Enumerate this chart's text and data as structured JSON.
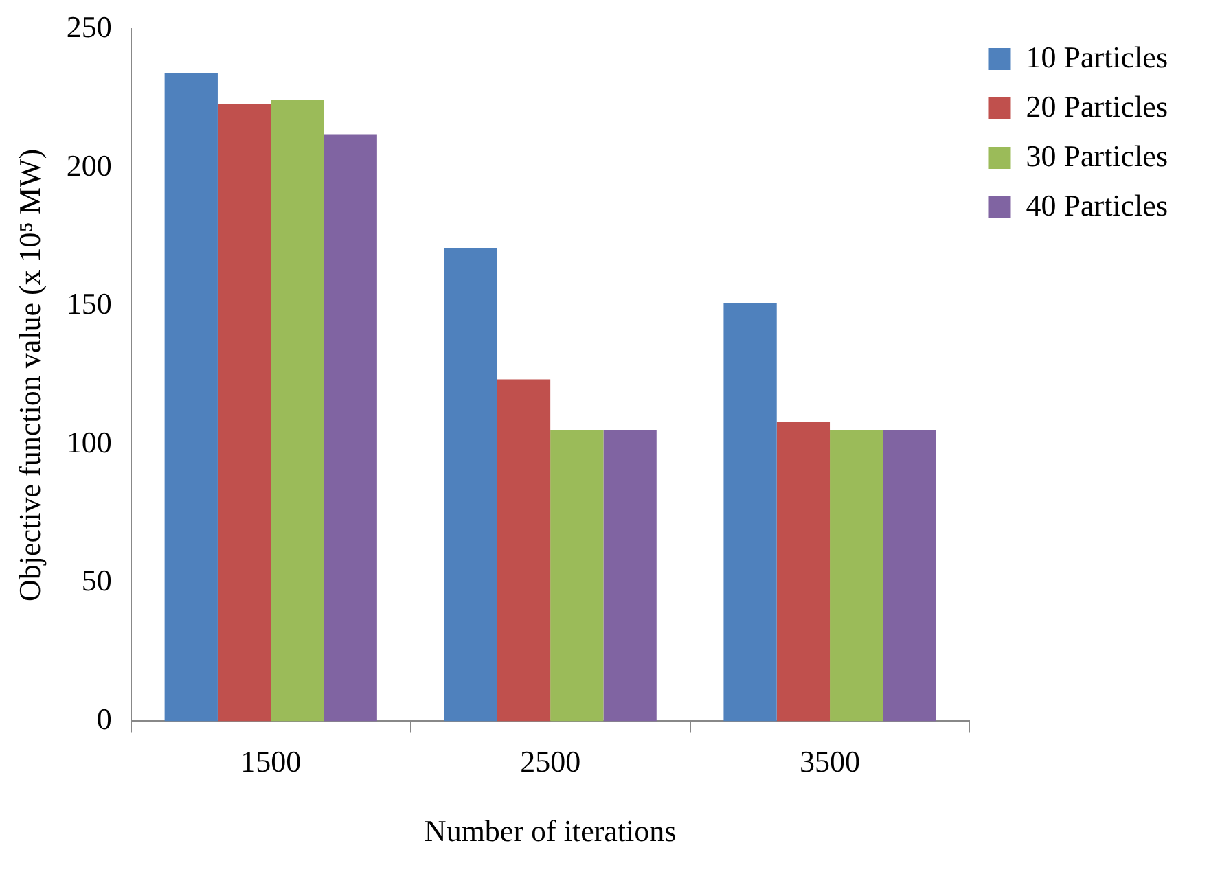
{
  "chart_data": {
    "type": "bar",
    "xlabel": "Number of iterations",
    "ylabel": "Objective function value (x 10⁵ MW)",
    "categories": [
      "1500",
      "2500",
      "3500"
    ],
    "series": [
      {
        "name": "10 Particles",
        "color": "#4f81bd",
        "values": [
          234,
          171,
          151
        ]
      },
      {
        "name": "20 Particles",
        "color": "#c0504d",
        "values": [
          223,
          123.5,
          108
        ]
      },
      {
        "name": "30 Particles",
        "color": "#9bbb59",
        "values": [
          224.5,
          105,
          105
        ]
      },
      {
        "name": "40 Particles",
        "color": "#8064a2",
        "values": [
          212,
          105,
          105
        ]
      }
    ],
    "ylim": [
      0,
      250
    ],
    "yticks": [
      0,
      50,
      100,
      150,
      200,
      250
    ],
    "grid": false,
    "legend": "right"
  }
}
